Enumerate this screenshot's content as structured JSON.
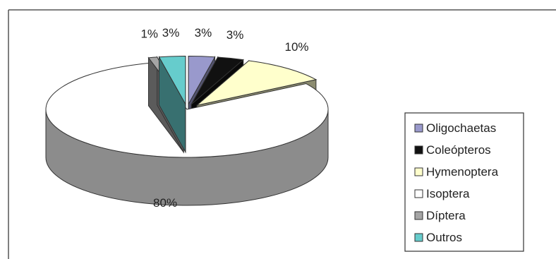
{
  "chart_data": {
    "type": "pie",
    "style": "3d-exploded",
    "legend_position": "right",
    "series": [
      {
        "name": "Oligochaetas",
        "value": 3,
        "label": "3%",
        "color": "#9999cc"
      },
      {
        "name": "Coleópteros",
        "value": 3,
        "label": "3%",
        "color": "#111111"
      },
      {
        "name": "Hymenoptera",
        "value": 10,
        "label": "10%",
        "color": "#ffffcc"
      },
      {
        "name": "Isoptera",
        "value": 80,
        "label": "80%",
        "color": "#ffffff"
      },
      {
        "name": "Díptera",
        "value": 1,
        "label": "1%",
        "color": "#a5a5a5"
      },
      {
        "name": "Outros",
        "value": 3,
        "label": "3%",
        "color": "#66cccc"
      }
    ]
  }
}
